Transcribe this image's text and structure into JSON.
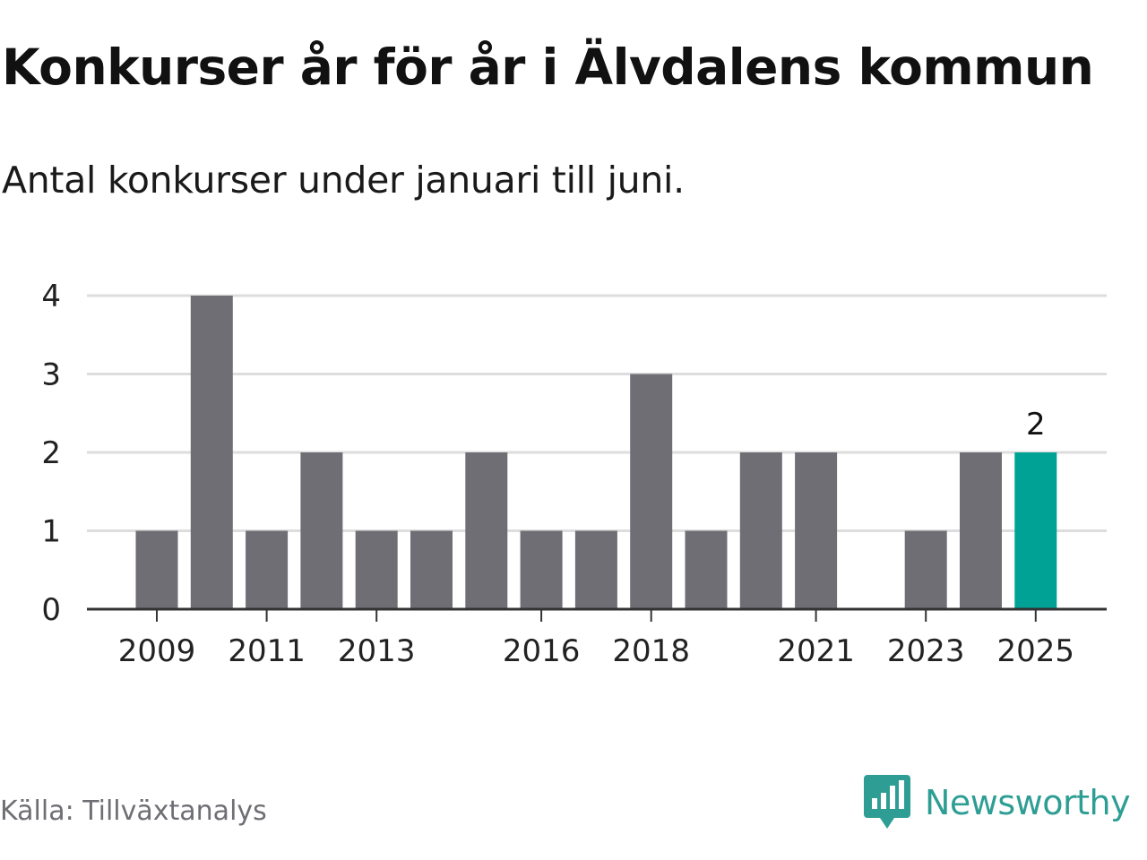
{
  "chart_data": {
    "type": "bar",
    "title": "Konkurser år för år i Älvdalens kommun",
    "subtitle": "Antal konkurser under januari till juni.",
    "categories": [
      2009,
      2010,
      2011,
      2012,
      2013,
      2014,
      2015,
      2016,
      2017,
      2018,
      2019,
      2020,
      2021,
      2022,
      2023,
      2024,
      2025
    ],
    "values": [
      1,
      4,
      1,
      2,
      1,
      1,
      2,
      1,
      1,
      3,
      1,
      2,
      2,
      0,
      1,
      2,
      2
    ],
    "x_tick_labels": [
      2009,
      2011,
      2013,
      2016,
      2018,
      2021,
      2023,
      2025
    ],
    "y_ticks": [
      0,
      1,
      2,
      3,
      4
    ],
    "ylim": [
      0,
      4
    ],
    "xlabel": "",
    "ylabel": "",
    "grid": true,
    "highlight_category": 2025,
    "highlight_label": "2",
    "colors": {
      "bar": "#6f6e74",
      "highlight": "#00a296",
      "grid": "#dddddd",
      "axis": "#333333"
    }
  },
  "source": "Källa: Tillväxtanalys",
  "brand": {
    "name": "Newsworthy",
    "logo_icon": "newsworthy-logo-icon"
  }
}
